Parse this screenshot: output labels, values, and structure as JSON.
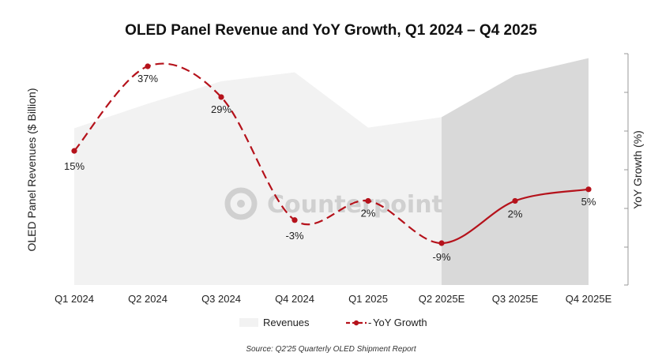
{
  "chart_data": {
    "type": "line",
    "title": "OLED Panel Revenue and YoY Growth, Q1 2024 – Q4 2025",
    "ylabel_left": "OLED Panel Revenues ($ Billion)",
    "ylabel_right": "YoY Growth (%)",
    "categories": [
      "Q1 2024",
      "Q2 2024",
      "Q3 2024",
      "Q4 2024",
      "Q1 2025",
      "Q2 2025E",
      "Q3 2025E",
      "Q4 2025E"
    ],
    "series": [
      {
        "name": "Revenues",
        "kind": "area",
        "values": [
          21.0,
          24.3,
          27.3,
          28.5,
          21.1,
          22.5,
          28.1,
          30.4
        ],
        "ylim": [
          0,
          31
        ],
        "forecast_from_index": 5,
        "color_actual": "#f2f2f2",
        "color_forecast": "#d9d9d9"
      },
      {
        "name": "YoY Growth",
        "kind": "line",
        "values": [
          15,
          37,
          29,
          -3,
          2,
          -9,
          2,
          5
        ],
        "labels": [
          "15%",
          "37%",
          "29%",
          "-3%",
          "2%",
          "-9%",
          "2%",
          "5%"
        ],
        "ylim": [
          -15,
          37
        ],
        "color": "#b5121b",
        "dashed_until_index": 5
      }
    ],
    "grid": false,
    "legend_position": "bottom"
  },
  "watermark": "Counterpoint",
  "source_note": "Source: Q2'25 Quarterly OLED Shipment Report"
}
